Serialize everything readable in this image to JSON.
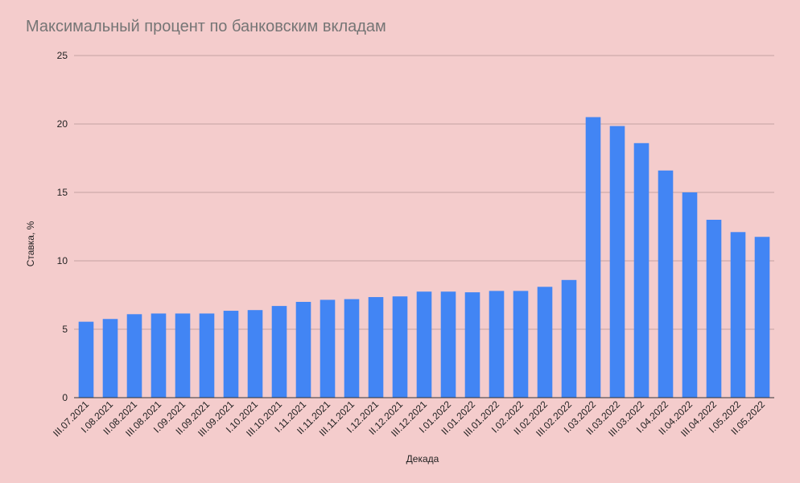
{
  "chart_data": {
    "type": "bar",
    "title": "Максимальный процент по банковским вкладам",
    "xlabel": "Декада",
    "ylabel": "Ставка, %",
    "ylim": [
      0,
      25
    ],
    "yticks": [
      0,
      5,
      10,
      15,
      20,
      25
    ],
    "grid": true,
    "legend": "none",
    "colors": {
      "background": "#f4cccc",
      "bar": "#4285f4",
      "title": "#757575"
    },
    "categories": [
      "III.07.2021",
      "I.08.2021",
      "II.08.2021",
      "III.08.2021",
      "I.09.2021",
      "II.09.2021",
      "III.09.2021",
      "I.10.2021",
      "III.10.2021",
      "I.11.2021",
      "II.11.2021",
      "III.11.2021",
      "I.12.2021",
      "II.12.2021",
      "III.12.2021",
      "I.01.2022",
      "II.01.2022",
      "III.01.2022",
      "I.02.2022",
      "II.02.2022",
      "III.02.2022",
      "I.03.2022",
      "II.03.2022",
      "III.03.2022",
      "I.04.2022",
      "II.04.2022",
      "III.04.2022",
      "I.05.2022",
      "II.05.2022"
    ],
    "values": [
      5.55,
      5.75,
      6.1,
      6.15,
      6.15,
      6.15,
      6.35,
      6.4,
      6.7,
      7.0,
      7.15,
      7.2,
      7.35,
      7.4,
      7.75,
      7.75,
      7.7,
      7.8,
      7.8,
      8.1,
      8.6,
      20.5,
      19.85,
      18.6,
      16.6,
      15.0,
      13.0,
      12.1,
      11.75
    ]
  }
}
